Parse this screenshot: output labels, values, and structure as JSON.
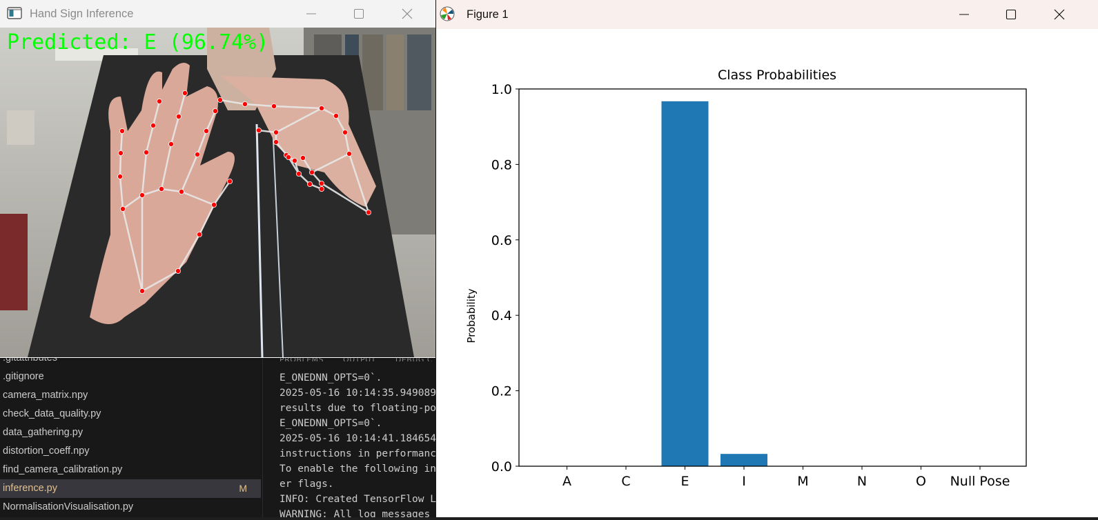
{
  "vscode": {
    "explorer_files": [
      {
        "name": ".gitattributes",
        "badge": ""
      },
      {
        "name": ".gitignore",
        "badge": ""
      },
      {
        "name": "camera_matrix.npy",
        "badge": ""
      },
      {
        "name": "check_data_quality.py",
        "badge": ""
      },
      {
        "name": "data_gathering.py",
        "badge": ""
      },
      {
        "name": "distortion_coeff.npy",
        "badge": ""
      },
      {
        "name": "find_camera_calibration.py",
        "badge": ""
      },
      {
        "name": "inference.py",
        "badge": "M"
      },
      {
        "name": "NormalisationVisualisation.py",
        "badge": ""
      }
    ],
    "panel_tabs": [
      "PROBLEMS",
      "OUTPUT",
      "DEBUG C"
    ],
    "terminal_lines": [
      "E_ONEDNN_OPTS=0`.",
      "2025-05-16 10:14:35.949089",
      "results due to floating-po",
      "E_ONEDNN_OPTS=0`.",
      "2025-05-16 10:14:41.184654",
      "instructions in performanc",
      "To enable the following in",
      "er flags.",
      "INFO: Created TensorFlow L",
      "WARNING: All log messages"
    ]
  },
  "camera_window": {
    "title": "Hand Sign Inference",
    "overlay_text": "Predicted: E (96.74%)",
    "overlay_color": "#00ff00",
    "landmark_color": "#ff0000"
  },
  "figure_window": {
    "title": "Figure 1"
  },
  "chart_data": {
    "type": "bar",
    "title": "Class Probabilities",
    "xlabel": "",
    "ylabel": "Probability",
    "categories": [
      "A",
      "C",
      "E",
      "I",
      "M",
      "N",
      "O",
      "Null Pose"
    ],
    "values": [
      0.0,
      0.0,
      0.9674,
      0.0326,
      0.0,
      0.0,
      0.0,
      0.0
    ],
    "ylim": [
      0,
      1.0
    ],
    "yticks": [
      "0.0",
      "0.2",
      "0.4",
      "0.6",
      "0.8",
      "1.0"
    ],
    "bar_color": "#1f77b4",
    "grid": false,
    "legend": "none"
  }
}
